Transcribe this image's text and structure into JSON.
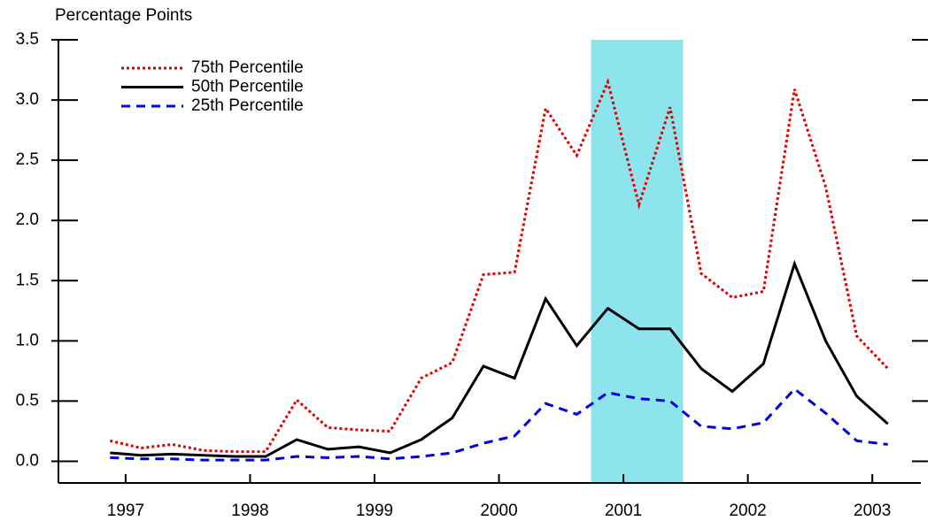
{
  "chart_data": {
    "type": "line",
    "y_label": "Percentage Points",
    "x": [
      1997.375,
      1997.625,
      1997.875,
      1998.125,
      1998.375,
      1998.625,
      1998.875,
      1999.125,
      1999.375,
      1999.625,
      1999.875,
      2000.125,
      2000.375,
      2000.625,
      2000.875,
      2001.125,
      2001.375,
      2001.625,
      2001.875,
      2002.125,
      2002.375,
      2002.625,
      2002.875,
      2003.125,
      2003.375,
      2003.625
    ],
    "series": [
      {
        "name": "75th Percentile",
        "color": "#e00000",
        "dash": "3,3",
        "values": [
          0.17,
          0.11,
          0.14,
          0.09,
          0.08,
          0.08,
          0.51,
          0.28,
          0.26,
          0.25,
          0.69,
          0.82,
          1.55,
          1.57,
          2.93,
          2.54,
          3.15,
          2.13,
          2.94,
          1.56,
          1.36,
          1.41,
          3.09,
          2.28,
          1.04,
          0.77
        ]
      },
      {
        "name": "50th Percentile",
        "color": "#000000",
        "dash": "none",
        "values": [
          0.07,
          0.05,
          0.06,
          0.05,
          0.04,
          0.04,
          0.18,
          0.1,
          0.12,
          0.07,
          0.18,
          0.36,
          0.79,
          0.69,
          1.35,
          0.96,
          1.27,
          1.1,
          1.1,
          0.77,
          0.58,
          0.81,
          1.64,
          1.0,
          0.54,
          0.31
        ]
      },
      {
        "name": "25th Percentile",
        "color": "#0000e0",
        "dash": "10,7",
        "values": [
          0.03,
          0.02,
          0.02,
          0.01,
          0.01,
          0.01,
          0.04,
          0.03,
          0.04,
          0.02,
          0.04,
          0.07,
          0.15,
          0.21,
          0.48,
          0.39,
          0.57,
          0.52,
          0.5,
          0.29,
          0.27,
          0.32,
          0.6,
          0.4,
          0.17,
          0.14
        ]
      }
    ],
    "shaded_region": {
      "color": "#8ee4ec",
      "x": [
        2001.24,
        2001.98
      ]
    },
    "xlim": [
      1996.96,
      2003.89
    ],
    "xticks": [
      {
        "value": 1997.5,
        "label": "1997"
      },
      {
        "value": 1998.5,
        "label": "1998"
      },
      {
        "value": 1999.5,
        "label": "1999"
      },
      {
        "value": 2000.5,
        "label": "2000"
      },
      {
        "value": 2001.5,
        "label": "2001"
      },
      {
        "value": 2002.5,
        "label": "2002"
      },
      {
        "value": 2003.5,
        "label": "2003"
      }
    ],
    "ylim": [
      -0.18,
      3.5
    ],
    "yticks": [
      {
        "value": 0,
        "label": "0.0"
      },
      {
        "value": 0.5,
        "label": "0.5"
      },
      {
        "value": 1,
        "label": "1.0"
      },
      {
        "value": 1.5,
        "label": "1.5"
      },
      {
        "value": 2,
        "label": "2.0"
      },
      {
        "value": 2.5,
        "label": "2.5"
      },
      {
        "value": 3,
        "label": "3.0"
      },
      {
        "value": 3.5,
        "label": "3.5"
      }
    ],
    "legend": "upper left"
  }
}
